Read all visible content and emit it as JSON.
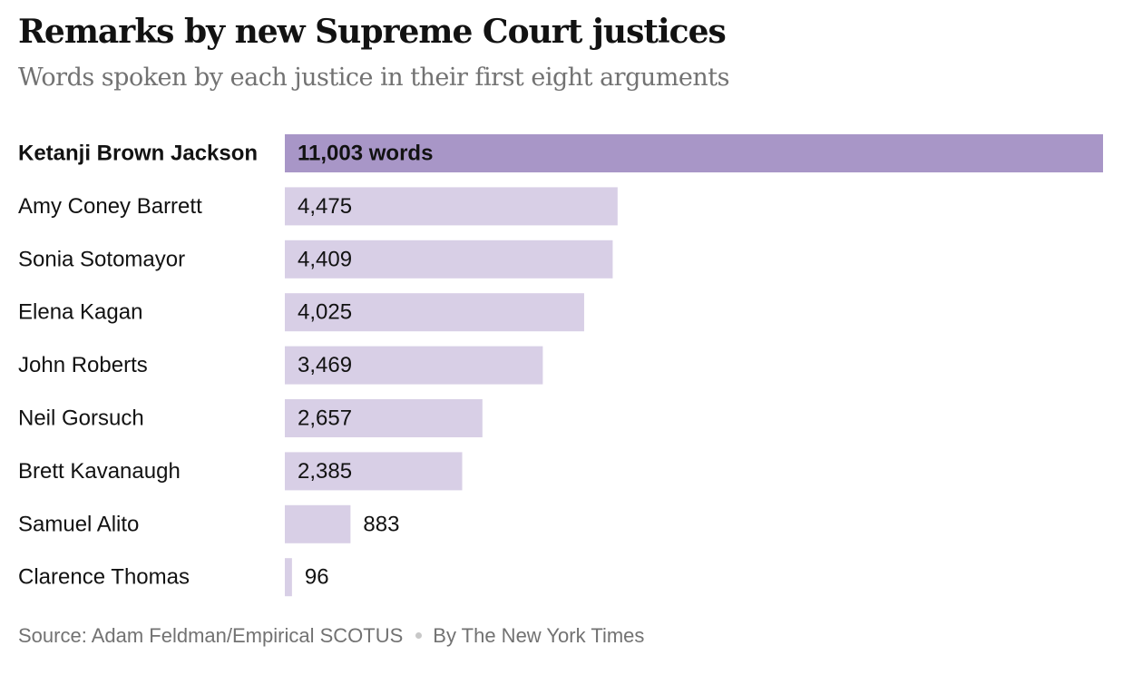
{
  "title": "Remarks by new Supreme Court justices",
  "subtitle": "Words spoken by each justice in their first eight arguments",
  "footer": {
    "source": "Source: Adam Feldman/Empirical SCOTUS",
    "credit": "By The New York Times"
  },
  "colors": {
    "highlight_bar": "#a896c7",
    "bar": "#d8cfe6",
    "text": "#121212"
  },
  "chart_data": {
    "type": "bar",
    "orientation": "horizontal",
    "title": "Remarks by new Supreme Court justices",
    "subtitle": "Words spoken by each justice in their first eight arguments",
    "xlabel": "",
    "ylabel": "",
    "xlim": [
      0,
      11003
    ],
    "grid": false,
    "legend": "none",
    "categories": [
      "Ketanji Brown Jackson",
      "Amy Coney Barrett",
      "Sonia Sotomayor",
      "Elena Kagan",
      "John Roberts",
      "Neil Gorsuch",
      "Brett Kavanaugh",
      "Samuel Alito",
      "Clarence Thomas"
    ],
    "values": [
      11003,
      4475,
      4409,
      4025,
      3469,
      2657,
      2385,
      883,
      96
    ],
    "labels": [
      "11,003 words",
      "4,475",
      "4,409",
      "4,025",
      "3,469",
      "2,657",
      "2,385",
      "883",
      "96"
    ],
    "highlighted": "Ketanji Brown Jackson"
  }
}
